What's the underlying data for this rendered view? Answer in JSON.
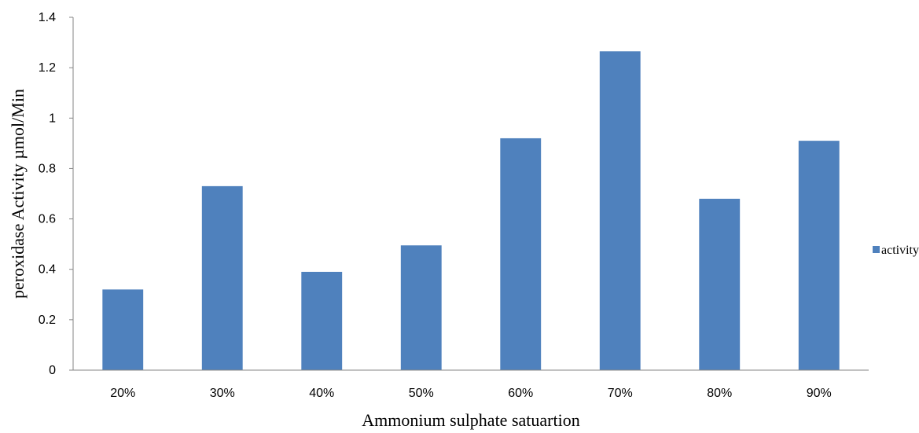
{
  "chart_data": {
    "type": "bar",
    "categories": [
      "20%",
      "30%",
      "40%",
      "50%",
      "60%",
      "70%",
      "80%",
      "90%"
    ],
    "series": [
      {
        "name": "activity",
        "values": [
          0.32,
          0.73,
          0.39,
          0.495,
          0.92,
          1.265,
          0.68,
          0.91
        ],
        "color": "#4F81BD"
      }
    ],
    "xlabel": "Ammonium sulphate satuartion",
    "ylabel": "peroxidase Activity µmol/Min",
    "ylim": [
      0,
      1.4
    ],
    "yticks": [
      "0",
      "0.2",
      "0.4",
      "0.6",
      "0.8",
      "1",
      "1.2",
      "1.4"
    ],
    "grid": false,
    "legend_position": "right"
  }
}
